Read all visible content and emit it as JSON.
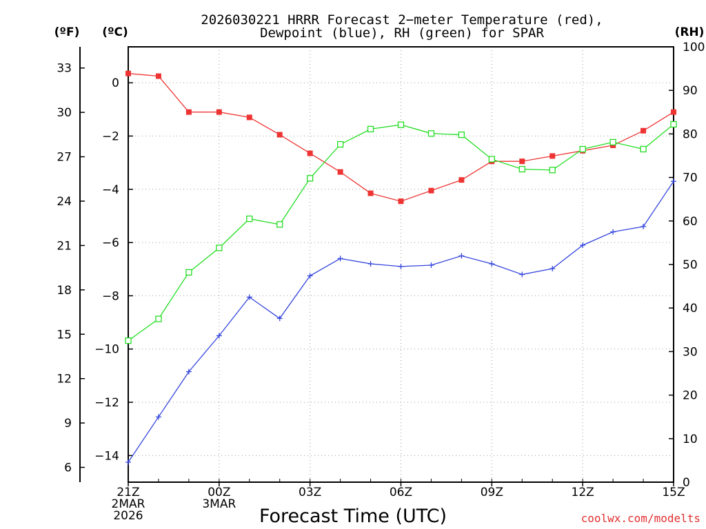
{
  "chart_data": {
    "type": "line",
    "title_line1": "2026030221 HRRR Forecast 2−meter Temperature (red),",
    "title_line2": "Dewpoint (blue), RH (green) for SPAR",
    "units": {
      "f": "(ºF)",
      "c": "(ºC)",
      "rh": "(RH)"
    },
    "xlabel": "Forecast Time (UTC)",
    "credit": "coolwx.com/modelts",
    "x_range": [
      0,
      18
    ],
    "celsius_range": [
      -15,
      1.35
    ],
    "rh_range": [
      0,
      100
    ],
    "hours": [
      0,
      1,
      2,
      3,
      4,
      5,
      6,
      7,
      8,
      9,
      10,
      11,
      12,
      13,
      14,
      15,
      16,
      17,
      18
    ],
    "celsius_ticks": [
      0,
      -2,
      -4,
      -6,
      -8,
      -10,
      -12,
      -14
    ],
    "celsius_tick_labels": [
      "0",
      "−2",
      "−4",
      "−6",
      "−8",
      "−10",
      "−12",
      "−14"
    ],
    "fahrenheit_ticks": [
      33,
      30,
      27,
      24,
      21,
      18,
      15,
      12,
      9,
      6
    ],
    "fahrenheit_tick_labels": [
      "33",
      "30",
      "27",
      "24",
      "21",
      "18",
      "15",
      "12",
      "9",
      "6"
    ],
    "rh_ticks": [
      100,
      90,
      80,
      70,
      60,
      50,
      40,
      30,
      20,
      10,
      0
    ],
    "rh_tick_labels": [
      "100",
      "90",
      "80",
      "70",
      "60",
      "50",
      "40",
      "30",
      "20",
      "10",
      "0"
    ],
    "x_ticks": [
      {
        "hour": 0,
        "lines": [
          "21Z",
          "2MAR",
          "2026"
        ]
      },
      {
        "hour": 3,
        "lines": [
          "00Z",
          "3MAR"
        ]
      },
      {
        "hour": 6,
        "lines": [
          "03Z"
        ]
      },
      {
        "hour": 9,
        "lines": [
          "06Z"
        ]
      },
      {
        "hour": 12,
        "lines": [
          "09Z"
        ]
      },
      {
        "hour": 15,
        "lines": [
          "12Z"
        ]
      },
      {
        "hour": 18,
        "lines": [
          "15Z"
        ]
      }
    ],
    "series": [
      {
        "name": "2-meter Temperature",
        "color": "#ee3333",
        "axis": "celsius",
        "marker": "square-filled",
        "values": [
          0.35,
          0.25,
          -1.1,
          -1.1,
          -1.3,
          -1.95,
          -2.65,
          -3.35,
          -4.15,
          -4.45,
          -4.05,
          -3.65,
          -2.95,
          -2.95,
          -2.75,
          -2.55,
          -2.35,
          -1.8,
          -1.1
        ]
      },
      {
        "name": "Dewpoint",
        "color": "#3344dd",
        "axis": "celsius",
        "marker": "plus",
        "values": [
          -14.25,
          -12.55,
          -10.85,
          -9.5,
          -8.05,
          -8.85,
          -7.25,
          -6.6,
          -6.8,
          -6.9,
          -6.85,
          -6.5,
          -6.8,
          -7.2,
          -6.98,
          -6.1,
          -5.6,
          -5.4,
          -3.7
        ]
      },
      {
        "name": "RH",
        "color": "#22dd22",
        "axis": "rh",
        "marker": "square-open",
        "values": [
          32.5,
          37.5,
          48.2,
          53.8,
          60.5,
          59.2,
          69.8,
          77.6,
          81.1,
          82.1,
          80.1,
          79.8,
          74.2,
          71.9,
          71.7,
          76.5,
          78.1,
          76.5,
          82.2
        ]
      }
    ]
  }
}
